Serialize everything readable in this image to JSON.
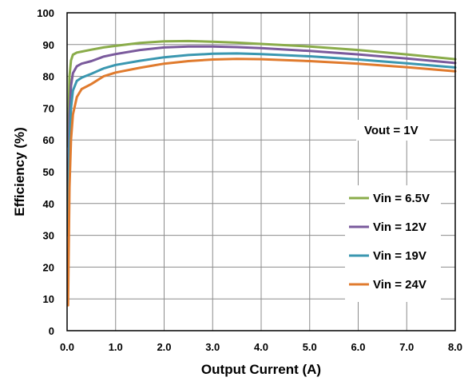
{
  "chart_data": {
    "type": "line",
    "xlabel": "Output Current (A)",
    "ylabel": "Efficiency (%)",
    "xlim": [
      0,
      8
    ],
    "ylim": [
      0,
      100
    ],
    "x_ticks": [
      "0.0",
      "1.0",
      "2.0",
      "3.0",
      "4.0",
      "5.0",
      "6.0",
      "7.0",
      "8.0"
    ],
    "y_ticks": [
      "0",
      "10",
      "20",
      "30",
      "40",
      "50",
      "60",
      "70",
      "80",
      "90",
      "100"
    ],
    "grid": true,
    "legend_position": "right",
    "annotation": "Vout = 1V",
    "series": [
      {
        "name": "Vin = 6.5V",
        "color": "#8aac4a",
        "points": [
          [
            0.02,
            58
          ],
          [
            0.05,
            80
          ],
          [
            0.08,
            85
          ],
          [
            0.12,
            86.8
          ],
          [
            0.2,
            87.5
          ],
          [
            0.3,
            87.8
          ],
          [
            0.5,
            88.4
          ],
          [
            0.75,
            89.1
          ],
          [
            1.0,
            89.6
          ],
          [
            1.5,
            90.5
          ],
          [
            2.0,
            91.0
          ],
          [
            2.5,
            91.1
          ],
          [
            3.0,
            90.9
          ],
          [
            3.5,
            90.6
          ],
          [
            4.0,
            90.2
          ],
          [
            5.0,
            89.4
          ],
          [
            6.0,
            88.3
          ],
          [
            7.0,
            86.9
          ],
          [
            8.0,
            85.4
          ]
        ]
      },
      {
        "name": "Vin = 12V",
        "color": "#7a5a9c",
        "points": [
          [
            0.02,
            40
          ],
          [
            0.05,
            68
          ],
          [
            0.08,
            77
          ],
          [
            0.12,
            81
          ],
          [
            0.2,
            83.2
          ],
          [
            0.3,
            84
          ],
          [
            0.5,
            84.8
          ],
          [
            0.75,
            86.2
          ],
          [
            1.0,
            87.0
          ],
          [
            1.5,
            88.3
          ],
          [
            2.0,
            89.1
          ],
          [
            2.5,
            89.4
          ],
          [
            3.0,
            89.4
          ],
          [
            3.5,
            89.2
          ],
          [
            4.0,
            88.9
          ],
          [
            5.0,
            88.0
          ],
          [
            6.0,
            86.9
          ],
          [
            7.0,
            85.6
          ],
          [
            8.0,
            84.2
          ]
        ]
      },
      {
        "name": "Vin = 19V",
        "color": "#3a97b0",
        "points": [
          [
            0.02,
            30
          ],
          [
            0.05,
            58
          ],
          [
            0.08,
            70
          ],
          [
            0.12,
            75.5
          ],
          [
            0.2,
            78.6
          ],
          [
            0.3,
            79.6
          ],
          [
            0.5,
            80.8
          ],
          [
            0.75,
            82.5
          ],
          [
            1.0,
            83.6
          ],
          [
            1.5,
            84.9
          ],
          [
            2.0,
            86.0
          ],
          [
            2.5,
            86.7
          ],
          [
            3.0,
            87.1
          ],
          [
            3.5,
            87.2
          ],
          [
            4.0,
            87.0
          ],
          [
            5.0,
            86.3
          ],
          [
            6.0,
            85.3
          ],
          [
            7.0,
            84.1
          ],
          [
            8.0,
            82.8
          ]
        ]
      },
      {
        "name": "Vin = 24V",
        "color": "#e07b2e",
        "points": [
          [
            0.02,
            8
          ],
          [
            0.05,
            45
          ],
          [
            0.08,
            60
          ],
          [
            0.12,
            68
          ],
          [
            0.2,
            73.5
          ],
          [
            0.3,
            76
          ],
          [
            0.5,
            77.6
          ],
          [
            0.75,
            80.0
          ],
          [
            1.0,
            81.2
          ],
          [
            1.5,
            82.7
          ],
          [
            2.0,
            84.0
          ],
          [
            2.5,
            84.8
          ],
          [
            3.0,
            85.3
          ],
          [
            3.5,
            85.5
          ],
          [
            4.0,
            85.4
          ],
          [
            5.0,
            84.8
          ],
          [
            6.0,
            84.0
          ],
          [
            7.0,
            82.9
          ],
          [
            8.0,
            81.6
          ]
        ]
      }
    ]
  }
}
